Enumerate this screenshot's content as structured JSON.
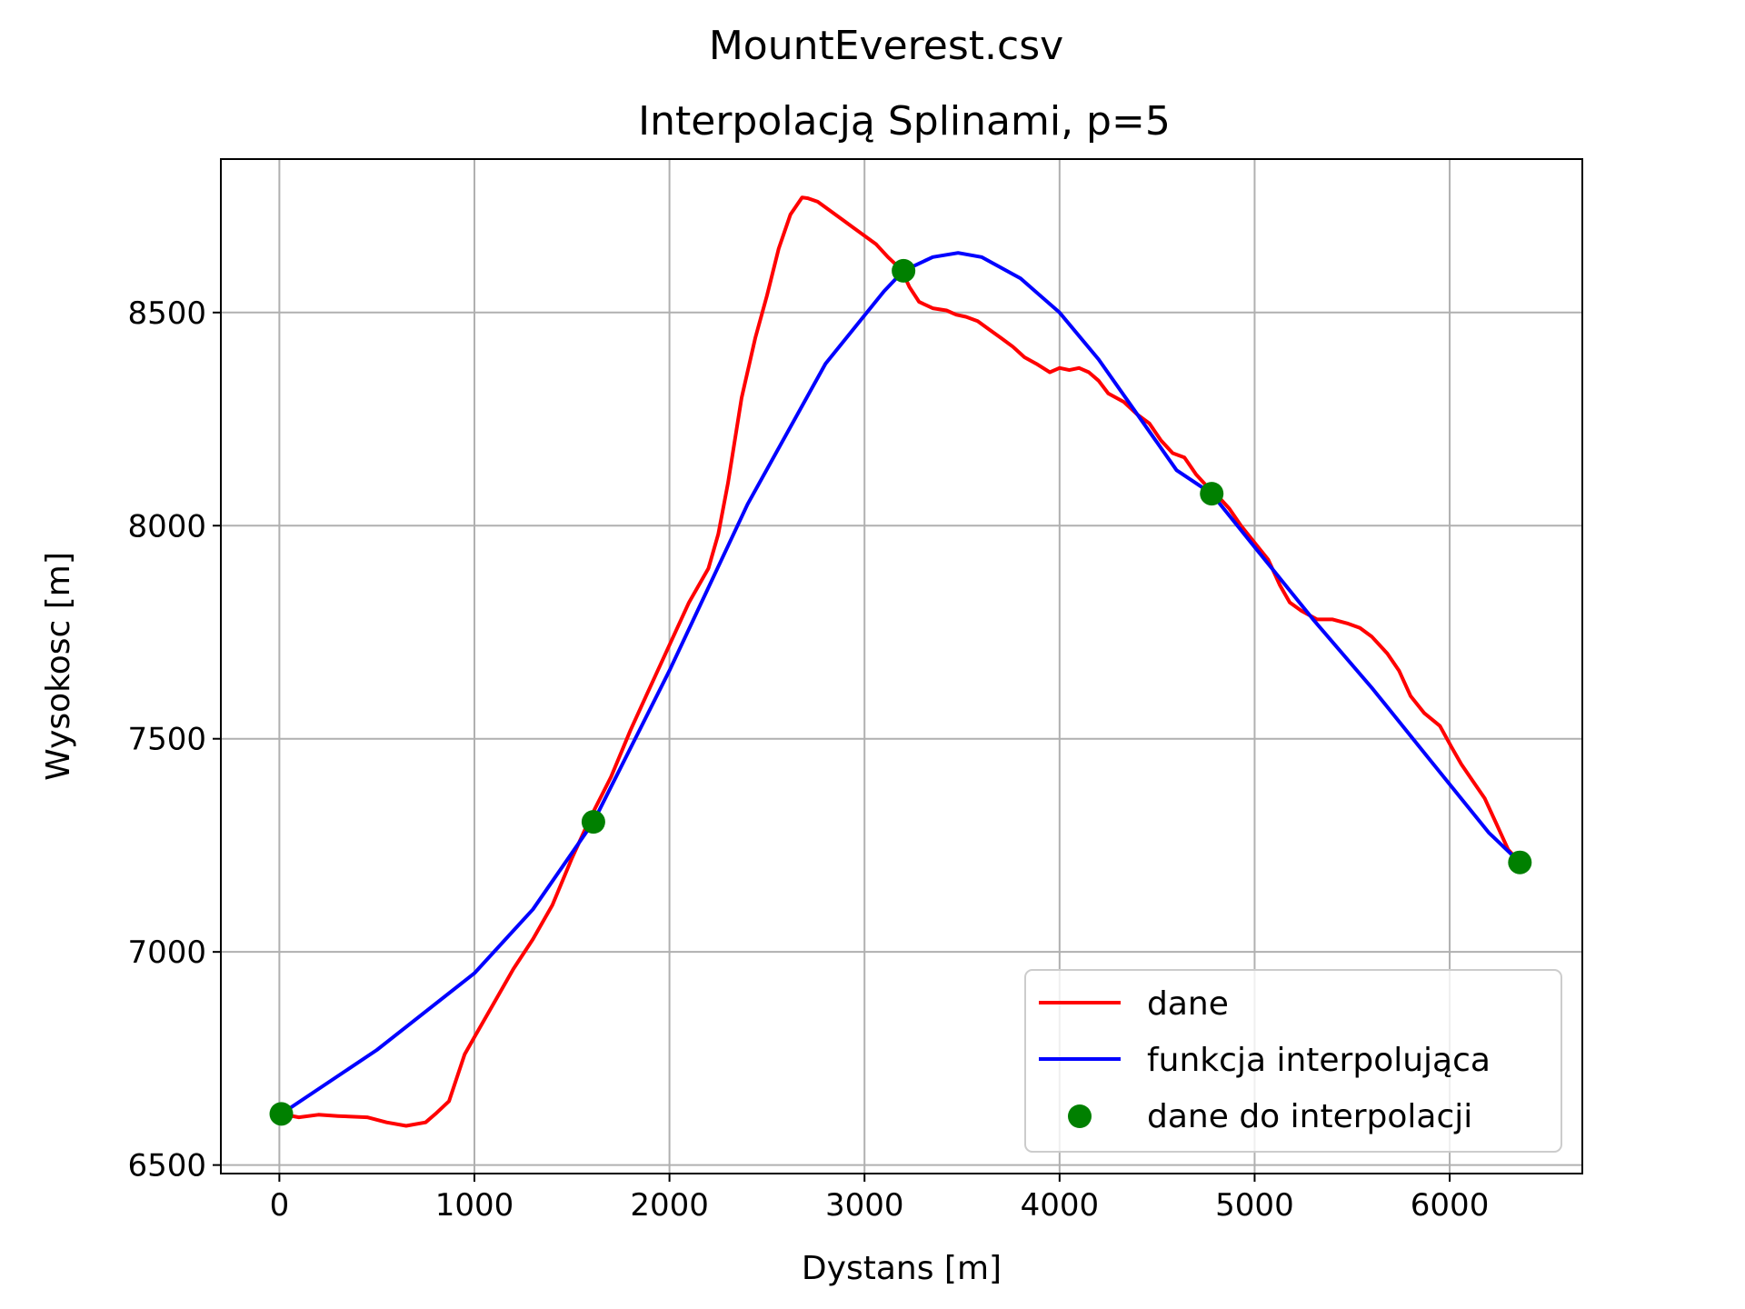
{
  "chart_data": {
    "type": "line",
    "suptitle": "MountEverest.csv",
    "title": "Interpolacją Splinami, p=5",
    "xlabel": "Dystans [m]",
    "ylabel": "Wysokosc [m]",
    "xlim": [
      -300,
      6680
    ],
    "ylim": [
      6480,
      8860
    ],
    "grid": true,
    "legend_position": "lower-right",
    "x_ticks": [
      0,
      1000,
      2000,
      3000,
      4000,
      5000,
      6000
    ],
    "x_tick_labels": [
      "0",
      "1000",
      "2000",
      "3000",
      "4000",
      "5000",
      "6000"
    ],
    "y_ticks": [
      6500,
      7000,
      7500,
      8000,
      8500
    ],
    "y_tick_labels": [
      "6500",
      "7000",
      "7500",
      "8000",
      "8500"
    ],
    "series": [
      {
        "name": "dane",
        "kind": "line",
        "color": "#ff0000",
        "x": [
          10,
          100,
          200,
          300,
          450,
          550,
          650,
          750,
          800,
          870,
          950,
          1000,
          1100,
          1200,
          1300,
          1400,
          1500,
          1600,
          1700,
          1800,
          1900,
          2000,
          2100,
          2200,
          2250,
          2300,
          2370,
          2440,
          2500,
          2560,
          2620,
          2680,
          2710,
          2760,
          2820,
          2880,
          2940,
          3000,
          3060,
          3120,
          3190,
          3230,
          3280,
          3350,
          3420,
          3470,
          3520,
          3580,
          3640,
          3700,
          3760,
          3820,
          3880,
          3950,
          4000,
          4050,
          4100,
          4150,
          4200,
          4250,
          4330,
          4400,
          4460,
          4520,
          4580,
          4640,
          4700,
          4780,
          4830,
          4870,
          4930,
          5000,
          5070,
          5130,
          5180,
          5240,
          5320,
          5400,
          5480,
          5540,
          5600,
          5680,
          5740,
          5800,
          5870,
          5950,
          6010,
          6060,
          6120,
          6180,
          6240,
          6300,
          6360
        ],
        "y": [
          6620,
          6612,
          6618,
          6615,
          6612,
          6600,
          6592,
          6600,
          6620,
          6650,
          6760,
          6800,
          6880,
          6960,
          7030,
          7110,
          7220,
          7320,
          7410,
          7520,
          7620,
          7720,
          7820,
          7900,
          7980,
          8100,
          8300,
          8440,
          8540,
          8650,
          8730,
          8770,
          8768,
          8760,
          8740,
          8720,
          8700,
          8680,
          8660,
          8630,
          8600,
          8560,
          8525,
          8510,
          8505,
          8495,
          8490,
          8480,
          8460,
          8440,
          8420,
          8395,
          8380,
          8360,
          8370,
          8365,
          8370,
          8360,
          8340,
          8310,
          8290,
          8260,
          8240,
          8200,
          8170,
          8160,
          8120,
          8080,
          8060,
          8040,
          8000,
          7960,
          7920,
          7860,
          7820,
          7800,
          7780,
          7780,
          7770,
          7760,
          7740,
          7700,
          7660,
          7600,
          7560,
          7530,
          7480,
          7440,
          7400,
          7360,
          7300,
          7240,
          7210
        ]
      },
      {
        "name": "funkcja interpolująca",
        "kind": "line",
        "color": "#0000ff",
        "x": [
          10,
          500,
          1000,
          1300,
          1610,
          2000,
          2400,
          2800,
          3100,
          3200,
          3350,
          3480,
          3600,
          3800,
          4000,
          4200,
          4400,
          4600,
          4780,
          5000,
          5300,
          5600,
          5900,
          6200,
          6360
        ],
        "y": [
          6620,
          6770,
          6950,
          7100,
          7305,
          7660,
          8050,
          8380,
          8550,
          8598,
          8630,
          8640,
          8630,
          8580,
          8500,
          8390,
          8260,
          8130,
          8075,
          7950,
          7780,
          7620,
          7450,
          7280,
          7210
        ]
      },
      {
        "name": "dane do interpolacji",
        "kind": "scatter",
        "color": "#008000",
        "x": [
          10,
          1610,
          3200,
          4780,
          6360
        ],
        "y": [
          6620,
          7305,
          8598,
          8075,
          7210
        ]
      }
    ]
  }
}
